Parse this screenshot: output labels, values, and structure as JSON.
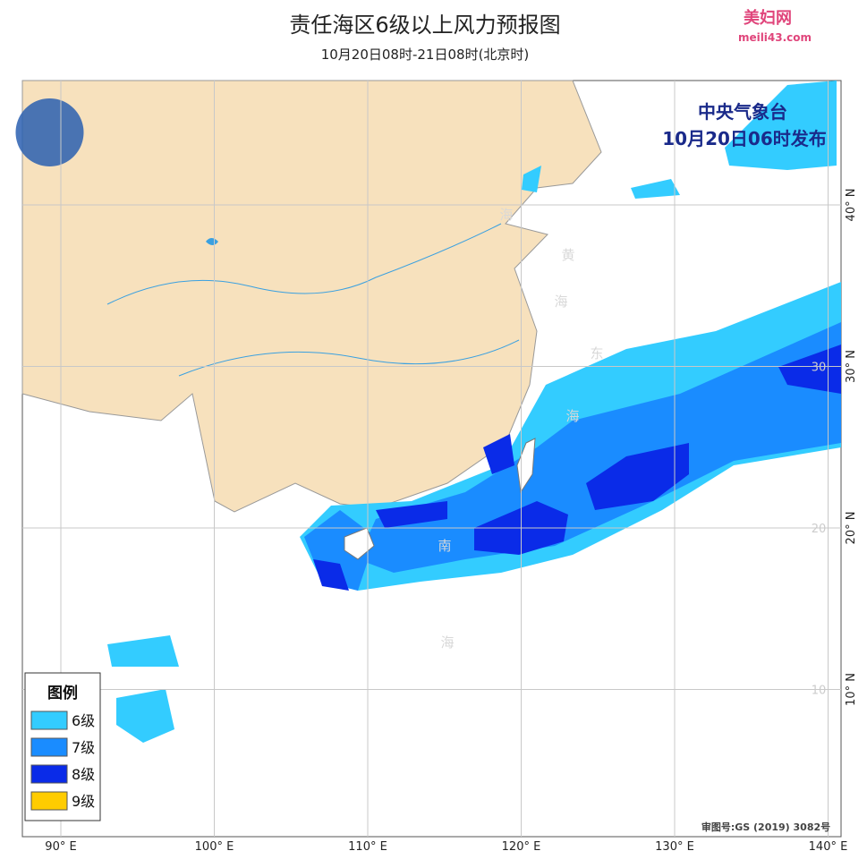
{
  "header": {
    "title": "责任海区6级以上风力预报图",
    "subtitle": "10月20日08时-21日08时(北京时)",
    "watermark_name": "美妇网",
    "watermark_url": "meili43.com"
  },
  "issuer": {
    "agency": "中央气象台",
    "issued": "10月20日06时发布"
  },
  "sea_labels": [
    "海",
    "黄",
    "海",
    "东",
    "海",
    "南",
    "海"
  ],
  "longitudes": [
    {
      "value": 90,
      "label": "90° E"
    },
    {
      "value": 100,
      "label": "100° E"
    },
    {
      "value": 110,
      "label": "110° E"
    },
    {
      "value": 120,
      "label": "120° E"
    },
    {
      "value": 130,
      "label": "130° E"
    },
    {
      "value": 140,
      "label": "140° E"
    }
  ],
  "latitudes": [
    {
      "value": 40,
      "label": "40° N"
    },
    {
      "value": 30,
      "label": "30° N",
      "inner": "30"
    },
    {
      "value": 20,
      "label": "20° N",
      "inner": "20"
    },
    {
      "value": 10,
      "label": "10° N",
      "inner": "10"
    }
  ],
  "legend": {
    "title": "图例",
    "items": [
      {
        "label": "6级",
        "color": "#33ccff"
      },
      {
        "label": "7级",
        "color": "#1a8cff"
      },
      {
        "label": "8级",
        "color": "#0a2be8"
      },
      {
        "label": "9级",
        "color": "#ffcc00"
      }
    ]
  },
  "approval": "审图号:GS (2019) 3082号"
}
